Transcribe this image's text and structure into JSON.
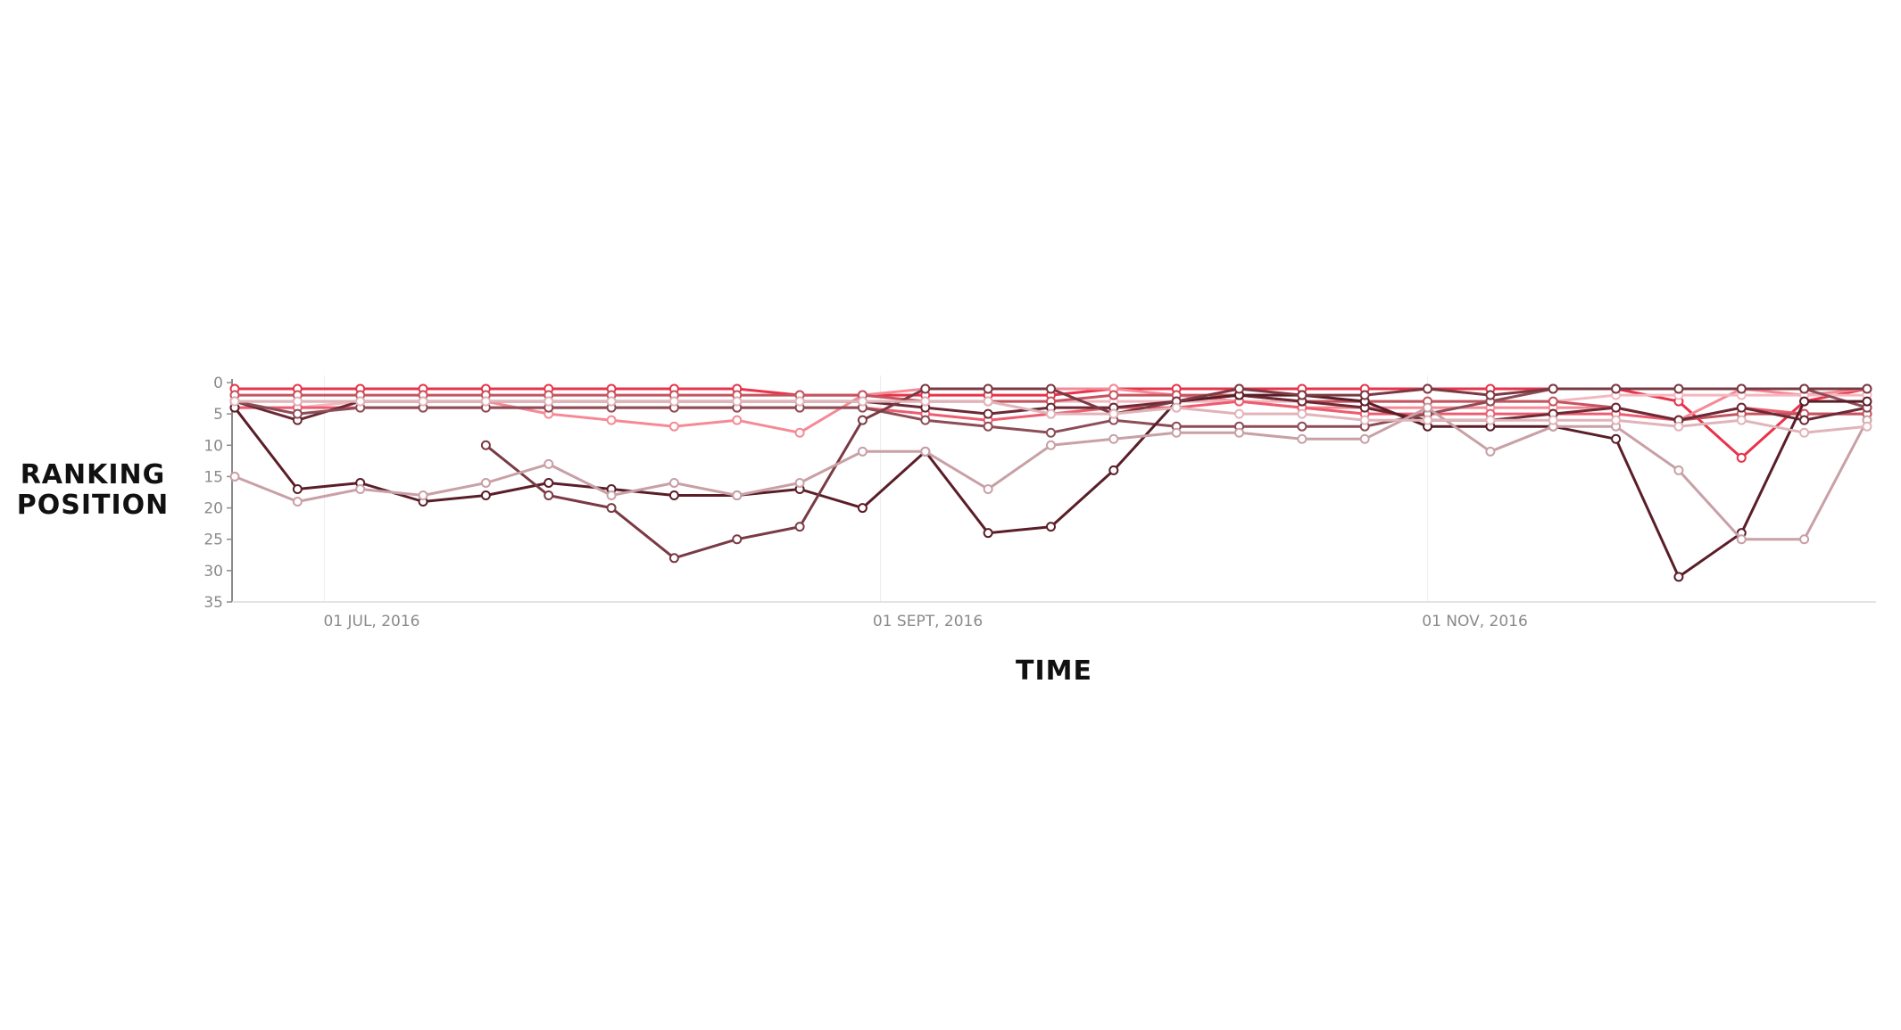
{
  "chart_data": {
    "type": "line",
    "xlabel": "TIME",
    "ylabel": [
      "RANKING",
      "POSITION"
    ],
    "ylim": [
      0,
      35
    ],
    "y_inverted": true,
    "y_ticks": [
      0,
      5,
      10,
      15,
      20,
      25,
      30,
      35
    ],
    "x_ticks": [
      "01 JUL, 2016",
      "01 SEPT, 2016",
      "01 NOV, 2016"
    ],
    "x_tick_dates": [
      "2016-07-01",
      "2016-09-01",
      "2016-11-01"
    ],
    "x_range": [
      "2016-06-21",
      "2016-12-21"
    ],
    "grid": "vertical",
    "legend": "none",
    "x": [
      "2016-06-21",
      "2016-06-28",
      "2016-07-05",
      "2016-07-12",
      "2016-07-19",
      "2016-07-26",
      "2016-08-02",
      "2016-08-09",
      "2016-08-16",
      "2016-08-23",
      "2016-08-30",
      "2016-09-06",
      "2016-09-13",
      "2016-09-20",
      "2016-09-27",
      "2016-10-04",
      "2016-10-11",
      "2016-10-18",
      "2016-10-25",
      "2016-11-01",
      "2016-11-08",
      "2016-11-15",
      "2016-11-22",
      "2016-11-29",
      "2016-12-06",
      "2016-12-13",
      "2016-12-20"
    ],
    "series": [
      {
        "color": "#e8334a",
        "values": [
          1,
          1,
          1,
          1,
          1,
          1,
          1,
          1,
          1,
          2,
          2,
          2,
          2,
          2,
          1,
          1,
          1,
          1,
          1,
          1,
          1,
          1,
          1,
          3,
          12,
          3,
          1
        ]
      },
      {
        "color": "#f58a96",
        "values": [
          3,
          3,
          3,
          3,
          3,
          5,
          6,
          7,
          6,
          8,
          2,
          1,
          1,
          1,
          1,
          2,
          3,
          4,
          4,
          4,
          4,
          4,
          4,
          6,
          1,
          2,
          1
        ]
      },
      {
        "color": "#f3b8bf",
        "values": [
          4,
          4,
          3,
          3,
          3,
          3,
          3,
          3,
          3,
          3,
          3,
          3,
          3,
          3,
          3,
          3,
          3,
          3,
          3,
          3,
          3,
          3,
          2,
          2,
          2,
          2,
          2
        ]
      },
      {
        "color": "#ec5d70",
        "values": [
          4,
          4,
          4,
          4,
          4,
          4,
          4,
          4,
          4,
          4,
          4,
          5,
          6,
          5,
          4,
          4,
          3,
          4,
          5,
          5,
          5,
          5,
          5,
          6,
          4,
          5,
          5
        ]
      },
      {
        "color": "#c4545f",
        "values": [
          2,
          2,
          2,
          2,
          2,
          2,
          2,
          2,
          2,
          2,
          2,
          3,
          3,
          3,
          2,
          2,
          2,
          3,
          3,
          3,
          3,
          3,
          4,
          6,
          5,
          5,
          5
        ]
      },
      {
        "color": "#6b2a35",
        "values": [
          3,
          6,
          3,
          3,
          3,
          3,
          3,
          3,
          3,
          3,
          3,
          4,
          5,
          4,
          4,
          3,
          2,
          3,
          4,
          6,
          6,
          5,
          4,
          6,
          4,
          6,
          4
        ]
      },
      {
        "color": "#8c4d57",
        "values": [
          3,
          5,
          4,
          4,
          4,
          4,
          4,
          4,
          4,
          4,
          4,
          6,
          7,
          8,
          6,
          7,
          7,
          7,
          7,
          5,
          3,
          1,
          1,
          1,
          1,
          1,
          4
        ]
      },
      {
        "color": "#5a1e28",
        "values": [
          4,
          17,
          16,
          19,
          18,
          16,
          17,
          18,
          18,
          17,
          20,
          11,
          24,
          23,
          14,
          3,
          2,
          2,
          3,
          7,
          7,
          7,
          9,
          31,
          24,
          3,
          3
        ]
      },
      {
        "color": "#7a3a44",
        "values": [
          null,
          null,
          null,
          null,
          10,
          18,
          20,
          28,
          25,
          23,
          6,
          1,
          1,
          1,
          5,
          3,
          1,
          2,
          2,
          1,
          2,
          1,
          1,
          1,
          1,
          1,
          1
        ]
      },
      {
        "color": "#c8a0a6",
        "values": [
          15,
          19,
          17,
          18,
          16,
          13,
          18,
          16,
          18,
          16,
          11,
          11,
          17,
          10,
          9,
          8,
          8,
          9,
          9,
          4,
          11,
          7,
          7,
          14,
          25,
          25,
          6
        ]
      },
      {
        "color": "#e0b4b9",
        "values": [
          3,
          3,
          3,
          3,
          3,
          3,
          3,
          3,
          3,
          3,
          3,
          3,
          3,
          5,
          5,
          4,
          5,
          5,
          6,
          6,
          6,
          6,
          6,
          7,
          6,
          8,
          7
        ]
      }
    ]
  }
}
